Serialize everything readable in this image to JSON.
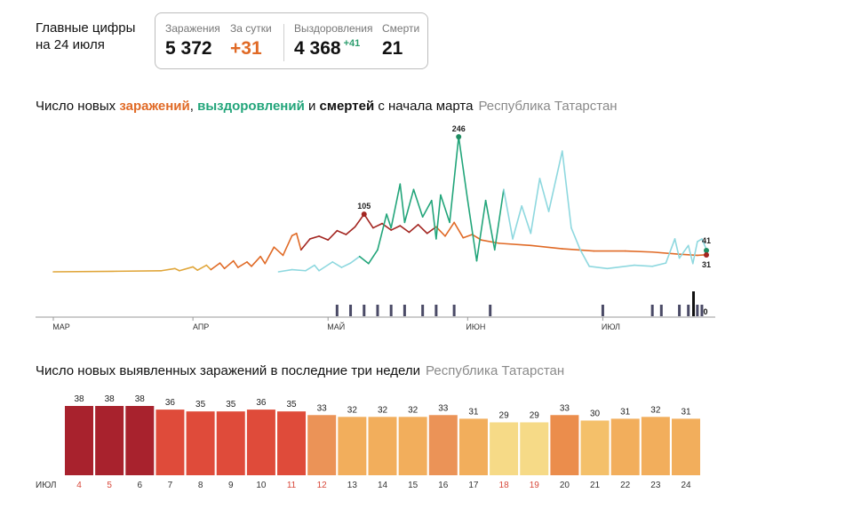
{
  "headline": {
    "line1": "Главные цифры",
    "line2": "на 24 июля"
  },
  "stats": {
    "infected_label": "Заражения",
    "infected_value": "5 372",
    "day_label": "За сутки",
    "day_value": "+31",
    "recovered_label": "Выздоровления",
    "recovered_value": "4 368",
    "recovered_delta": "+41",
    "deaths_label": "Смерти",
    "deaths_value": "21"
  },
  "colors": {
    "infected": "#e06a26",
    "recovered": "#22a57a",
    "deaths": "#2c2c44",
    "region": "#8a8a8a"
  },
  "chart_data": [
    {
      "type": "line",
      "title_parts": [
        "Число новых ",
        "заражений",
        ", ",
        "выздоровлений",
        " и ",
        "смертей",
        " с начала марта"
      ],
      "region": "Республика Татарстан",
      "x_tick_labels": [
        "МАР",
        "АПР",
        "МАЙ",
        "ИЮН",
        "ИЮЛ"
      ],
      "x_range": [
        "2020-03-01",
        "2020-07-24"
      ],
      "annotations": {
        "peak_recovered": "246",
        "peak_infected": "105",
        "last_recovered": "41",
        "last_infected": "31",
        "last_deaths": "0"
      },
      "series": [
        {
          "key": "infected",
          "points": [
            [
              "2020-03-01",
              0
            ],
            [
              "2020-03-15",
              1
            ],
            [
              "2020-03-25",
              2
            ],
            [
              "2020-03-28",
              6
            ],
            [
              "2020-03-29",
              2
            ],
            [
              "2020-04-01",
              9
            ],
            [
              "2020-04-02",
              3
            ],
            [
              "2020-04-04",
              12
            ],
            [
              "2020-04-05",
              4
            ],
            [
              "2020-04-07",
              16
            ],
            [
              "2020-04-08",
              6
            ],
            [
              "2020-04-10",
              20
            ],
            [
              "2020-04-11",
              8
            ],
            [
              "2020-04-13",
              18
            ],
            [
              "2020-04-14",
              10
            ],
            [
              "2020-04-16",
              28
            ],
            [
              "2020-04-17",
              15
            ],
            [
              "2020-04-19",
              45
            ],
            [
              "2020-04-21",
              30
            ],
            [
              "2020-04-23",
              66
            ],
            [
              "2020-04-24",
              70
            ],
            [
              "2020-04-25",
              40
            ],
            [
              "2020-04-27",
              60
            ],
            [
              "2020-04-29",
              65
            ],
            [
              "2020-05-01",
              58
            ],
            [
              "2020-05-03",
              75
            ],
            [
              "2020-05-05",
              68
            ],
            [
              "2020-05-07",
              82
            ],
            [
              "2020-05-09",
              105
            ],
            [
              "2020-05-11",
              80
            ],
            [
              "2020-05-13",
              88
            ],
            [
              "2020-05-15",
              76
            ],
            [
              "2020-05-17",
              84
            ],
            [
              "2020-05-19",
              72
            ],
            [
              "2020-05-21",
              86
            ],
            [
              "2020-05-23",
              70
            ],
            [
              "2020-05-25",
              82
            ],
            [
              "2020-05-27",
              65
            ],
            [
              "2020-05-29",
              90
            ],
            [
              "2020-05-31",
              62
            ],
            [
              "2020-06-02",
              68
            ],
            [
              "2020-06-04",
              58
            ],
            [
              "2020-06-08",
              52
            ],
            [
              "2020-06-15",
              48
            ],
            [
              "2020-06-22",
              42
            ],
            [
              "2020-06-29",
              38
            ],
            [
              "2020-07-06",
              38
            ],
            [
              "2020-07-12",
              36
            ],
            [
              "2020-07-18",
              32
            ],
            [
              "2020-07-22",
              30
            ],
            [
              "2020-07-24",
              31
            ]
          ]
        },
        {
          "key": "recovered",
          "points": [
            [
              "2020-04-20",
              0
            ],
            [
              "2020-04-23",
              4
            ],
            [
              "2020-04-26",
              2
            ],
            [
              "2020-04-28",
              12
            ],
            [
              "2020-04-29",
              2
            ],
            [
              "2020-05-02",
              18
            ],
            [
              "2020-05-04",
              8
            ],
            [
              "2020-05-06",
              16
            ],
            [
              "2020-05-08",
              28
            ],
            [
              "2020-05-10",
              15
            ],
            [
              "2020-05-12",
              40
            ],
            [
              "2020-05-14",
              105
            ],
            [
              "2020-05-15",
              80
            ],
            [
              "2020-05-17",
              160
            ],
            [
              "2020-05-18",
              90
            ],
            [
              "2020-05-20",
              150
            ],
            [
              "2020-05-22",
              100
            ],
            [
              "2020-05-24",
              130
            ],
            [
              "2020-05-25",
              60
            ],
            [
              "2020-05-26",
              140
            ],
            [
              "2020-05-28",
              90
            ],
            [
              "2020-05-30",
              246
            ],
            [
              "2020-06-01",
              130
            ],
            [
              "2020-06-03",
              20
            ],
            [
              "2020-06-05",
              130
            ],
            [
              "2020-06-07",
              40
            ],
            [
              "2020-06-09",
              150
            ],
            [
              "2020-06-11",
              60
            ],
            [
              "2020-06-13",
              120
            ],
            [
              "2020-06-15",
              70
            ],
            [
              "2020-06-17",
              170
            ],
            [
              "2020-06-19",
              110
            ],
            [
              "2020-06-22",
              220
            ],
            [
              "2020-06-24",
              80
            ],
            [
              "2020-06-26",
              40
            ],
            [
              "2020-06-28",
              10
            ],
            [
              "2020-07-02",
              6
            ],
            [
              "2020-07-08",
              12
            ],
            [
              "2020-07-12",
              10
            ],
            [
              "2020-07-15",
              16
            ],
            [
              "2020-07-17",
              60
            ],
            [
              "2020-07-18",
              25
            ],
            [
              "2020-07-20",
              48
            ],
            [
              "2020-07-21",
              15
            ],
            [
              "2020-07-22",
              55
            ],
            [
              "2020-07-23",
              60
            ],
            [
              "2020-07-24",
              41
            ]
          ]
        },
        {
          "key": "deaths",
          "points": [
            [
              "2020-05-03",
              1
            ],
            [
              "2020-05-06",
              1
            ],
            [
              "2020-05-09",
              1
            ],
            [
              "2020-05-12",
              1
            ],
            [
              "2020-05-15",
              1
            ],
            [
              "2020-05-18",
              1
            ],
            [
              "2020-05-22",
              1
            ],
            [
              "2020-05-25",
              1
            ],
            [
              "2020-05-29",
              1
            ],
            [
              "2020-06-06",
              1
            ],
            [
              "2020-07-01",
              1
            ],
            [
              "2020-07-12",
              1
            ],
            [
              "2020-07-14",
              1
            ],
            [
              "2020-07-18",
              1
            ],
            [
              "2020-07-20",
              1
            ],
            [
              "2020-07-22",
              1
            ],
            [
              "2020-07-23",
              1
            ],
            [
              "2020-07-24",
              0
            ]
          ]
        }
      ]
    },
    {
      "type": "bar",
      "title": "Число новых выявленных заражений в последние три недели",
      "region": "Республика Татарстан",
      "month_label": "ИЮЛ",
      "categories": [
        "4",
        "5",
        "6",
        "7",
        "8",
        "9",
        "10",
        "11",
        "12",
        "13",
        "14",
        "15",
        "16",
        "17",
        "18",
        "19",
        "20",
        "21",
        "22",
        "23",
        "24"
      ],
      "values": [
        38,
        38,
        38,
        36,
        35,
        35,
        36,
        35,
        33,
        32,
        32,
        32,
        33,
        31,
        29,
        29,
        33,
        30,
        31,
        32,
        31
      ],
      "weekend_categories": [
        "4",
        "5",
        "11",
        "12",
        "18",
        "19"
      ],
      "ylim": [
        0,
        38
      ]
    }
  ]
}
